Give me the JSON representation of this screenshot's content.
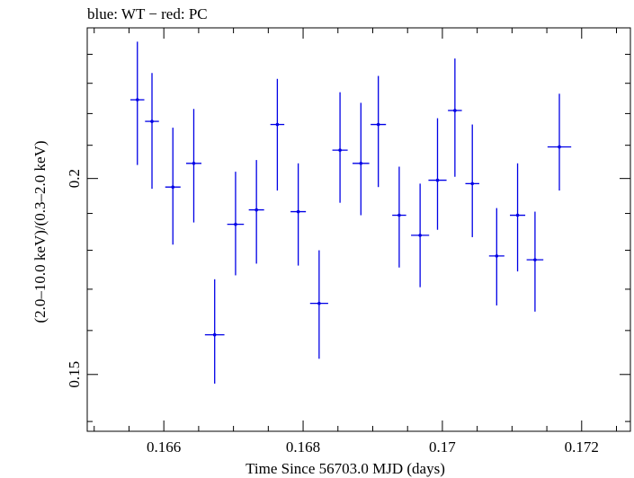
{
  "chart_data": {
    "type": "scatter",
    "title": "blue: WT − red: PC",
    "xlabel": "Time Since 56703.0 MJD (days)",
    "ylabel": "(2.0–10.0 keV)/(0.3–2.0 keV)",
    "xlim": [
      0.1649,
      0.1727
    ],
    "ylim": [
      0.138,
      0.2495
    ],
    "log_y": true,
    "grid": false,
    "x_ticks": [
      {
        "value": 0.166,
        "label": "0.166"
      },
      {
        "value": 0.168,
        "label": "0.168"
      },
      {
        "value": 0.17,
        "label": "0.17"
      },
      {
        "value": 0.172,
        "label": "0.172"
      }
    ],
    "y_ticks": [
      {
        "value": 0.15,
        "label": "0.15"
      },
      {
        "value": 0.2,
        "label": "0.2"
      }
    ],
    "series": [
      {
        "color": "#0000e6",
        "points": [
          {
            "x": 0.16562,
            "xerr": 0.0001,
            "y": 0.2245,
            "ylo": 0.204,
            "yhi": 0.2445
          },
          {
            "x": 0.16583,
            "xerr": 0.0001,
            "y": 0.2175,
            "ylo": 0.197,
            "yhi": 0.2335
          },
          {
            "x": 0.16613,
            "xerr": 0.00011,
            "y": 0.1975,
            "ylo": 0.1815,
            "yhi": 0.2155
          },
          {
            "x": 0.16643,
            "xerr": 0.00011,
            "y": 0.2045,
            "ylo": 0.1875,
            "yhi": 0.2215
          },
          {
            "x": 0.16673,
            "xerr": 0.00014,
            "y": 0.159,
            "ylo": 0.148,
            "yhi": 0.1725
          },
          {
            "x": 0.16703,
            "xerr": 0.00012,
            "y": 0.187,
            "ylo": 0.1735,
            "yhi": 0.202
          },
          {
            "x": 0.16733,
            "xerr": 0.00011,
            "y": 0.191,
            "ylo": 0.1765,
            "yhi": 0.2055
          },
          {
            "x": 0.16763,
            "xerr": 0.0001,
            "y": 0.2165,
            "ylo": 0.1965,
            "yhi": 0.2315
          },
          {
            "x": 0.16793,
            "xerr": 0.00011,
            "y": 0.1905,
            "ylo": 0.176,
            "yhi": 0.2045
          },
          {
            "x": 0.16823,
            "xerr": 0.00013,
            "y": 0.1665,
            "ylo": 0.1535,
            "yhi": 0.18
          },
          {
            "x": 0.16853,
            "xerr": 0.00011,
            "y": 0.2085,
            "ylo": 0.193,
            "yhi": 0.227
          },
          {
            "x": 0.16883,
            "xerr": 0.00012,
            "y": 0.2045,
            "ylo": 0.1895,
            "yhi": 0.2235
          },
          {
            "x": 0.16908,
            "xerr": 0.00011,
            "y": 0.2165,
            "ylo": 0.1975,
            "yhi": 0.2325
          },
          {
            "x": 0.16938,
            "xerr": 0.0001,
            "y": 0.1895,
            "ylo": 0.1755,
            "yhi": 0.2035
          },
          {
            "x": 0.16968,
            "xerr": 0.00013,
            "y": 0.184,
            "ylo": 0.1705,
            "yhi": 0.1985
          },
          {
            "x": 0.16993,
            "xerr": 0.00013,
            "y": 0.1995,
            "ylo": 0.1855,
            "yhi": 0.2185
          },
          {
            "x": 0.17018,
            "xerr": 0.0001,
            "y": 0.221,
            "ylo": 0.2005,
            "yhi": 0.2385
          },
          {
            "x": 0.17043,
            "xerr": 0.0001,
            "y": 0.1985,
            "ylo": 0.1835,
            "yhi": 0.2165
          },
          {
            "x": 0.17078,
            "xerr": 0.00011,
            "y": 0.1785,
            "ylo": 0.166,
            "yhi": 0.1915
          },
          {
            "x": 0.17108,
            "xerr": 0.00011,
            "y": 0.1895,
            "ylo": 0.1745,
            "yhi": 0.2045
          },
          {
            "x": 0.17133,
            "xerr": 0.00012,
            "y": 0.1775,
            "ylo": 0.1645,
            "yhi": 0.1905
          },
          {
            "x": 0.17168,
            "xerr": 0.00017,
            "y": 0.2095,
            "ylo": 0.1965,
            "yhi": 0.2265
          }
        ]
      }
    ]
  }
}
